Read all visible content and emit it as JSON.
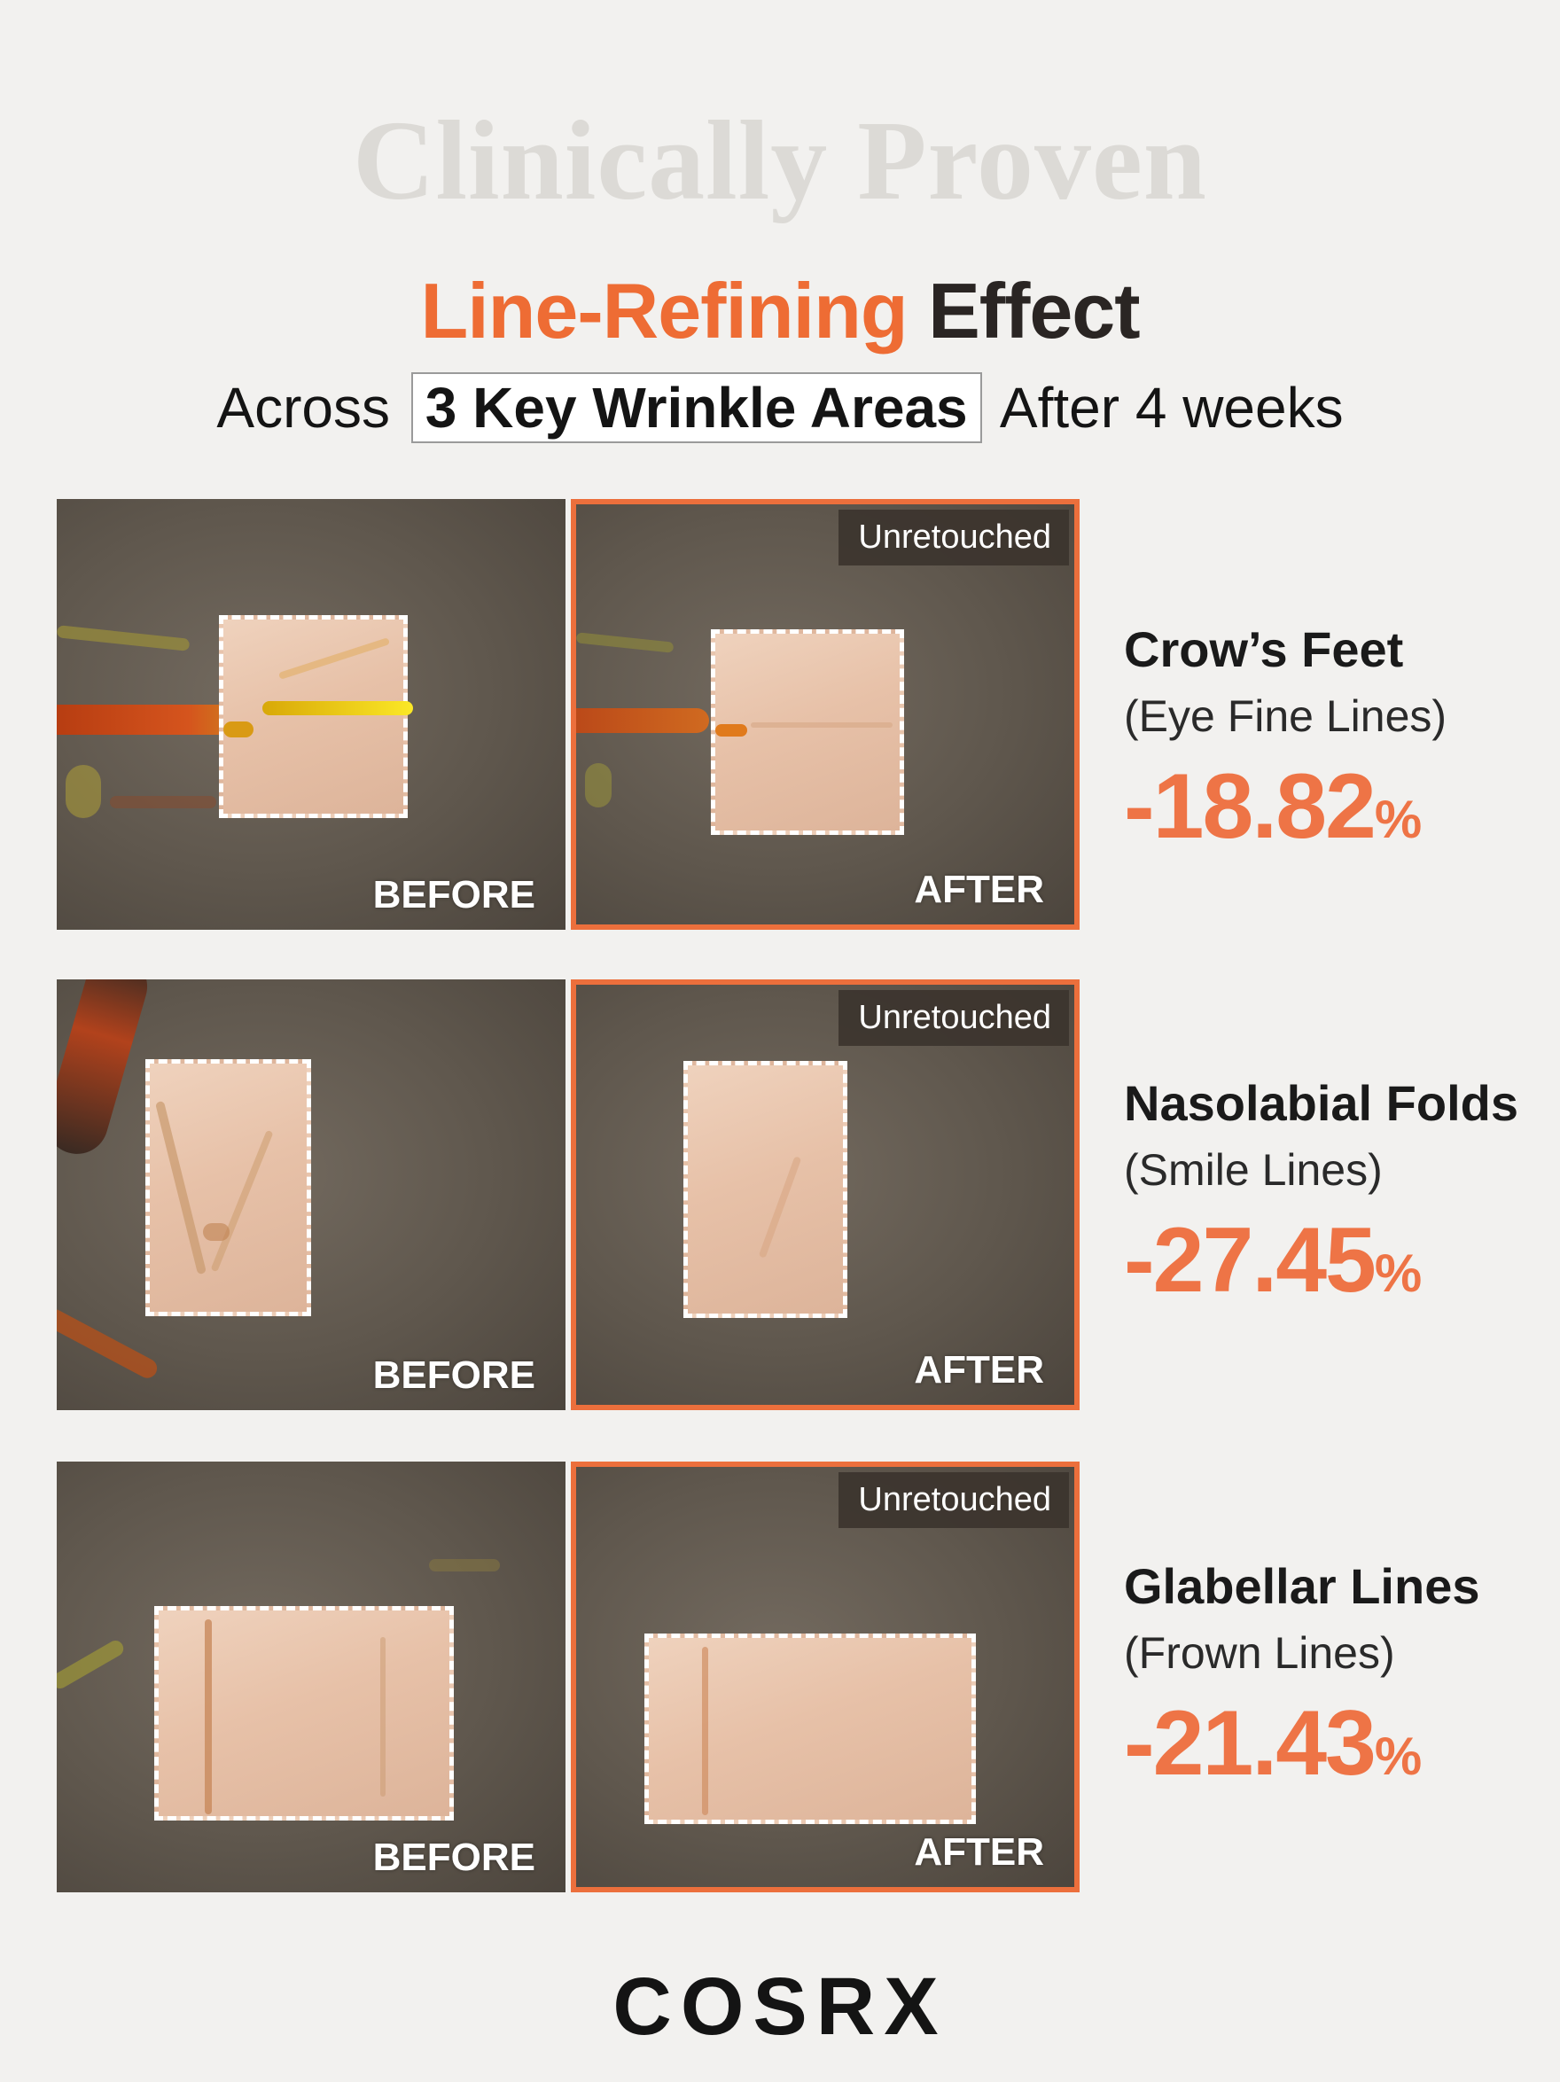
{
  "headline": "Clinically Proven",
  "title": {
    "accent": "Line-Refining",
    "rest": "Effect"
  },
  "subtitle": {
    "before": "Across",
    "highlight": "3 Key Wrinkle Areas",
    "after": "After 4 weeks"
  },
  "labels": {
    "before": "BEFORE",
    "after": "AFTER",
    "badge": "Unretouched"
  },
  "areas": [
    {
      "name": "Crow’s Feet",
      "sub": "(Eye Fine Lines)",
      "value": "-18.82",
      "unit": "%"
    },
    {
      "name": "Nasolabial Folds",
      "sub": "(Smile Lines)",
      "value": "-27.45",
      "unit": "%"
    },
    {
      "name": "Glabellar Lines",
      "sub": "(Frown Lines)",
      "value": "-21.43",
      "unit": "%"
    }
  ],
  "brand": "COSRX",
  "colors": {
    "accent": "#ee6c34",
    "panel_border": "#ec6f3c",
    "background": "#f2f1ef"
  }
}
